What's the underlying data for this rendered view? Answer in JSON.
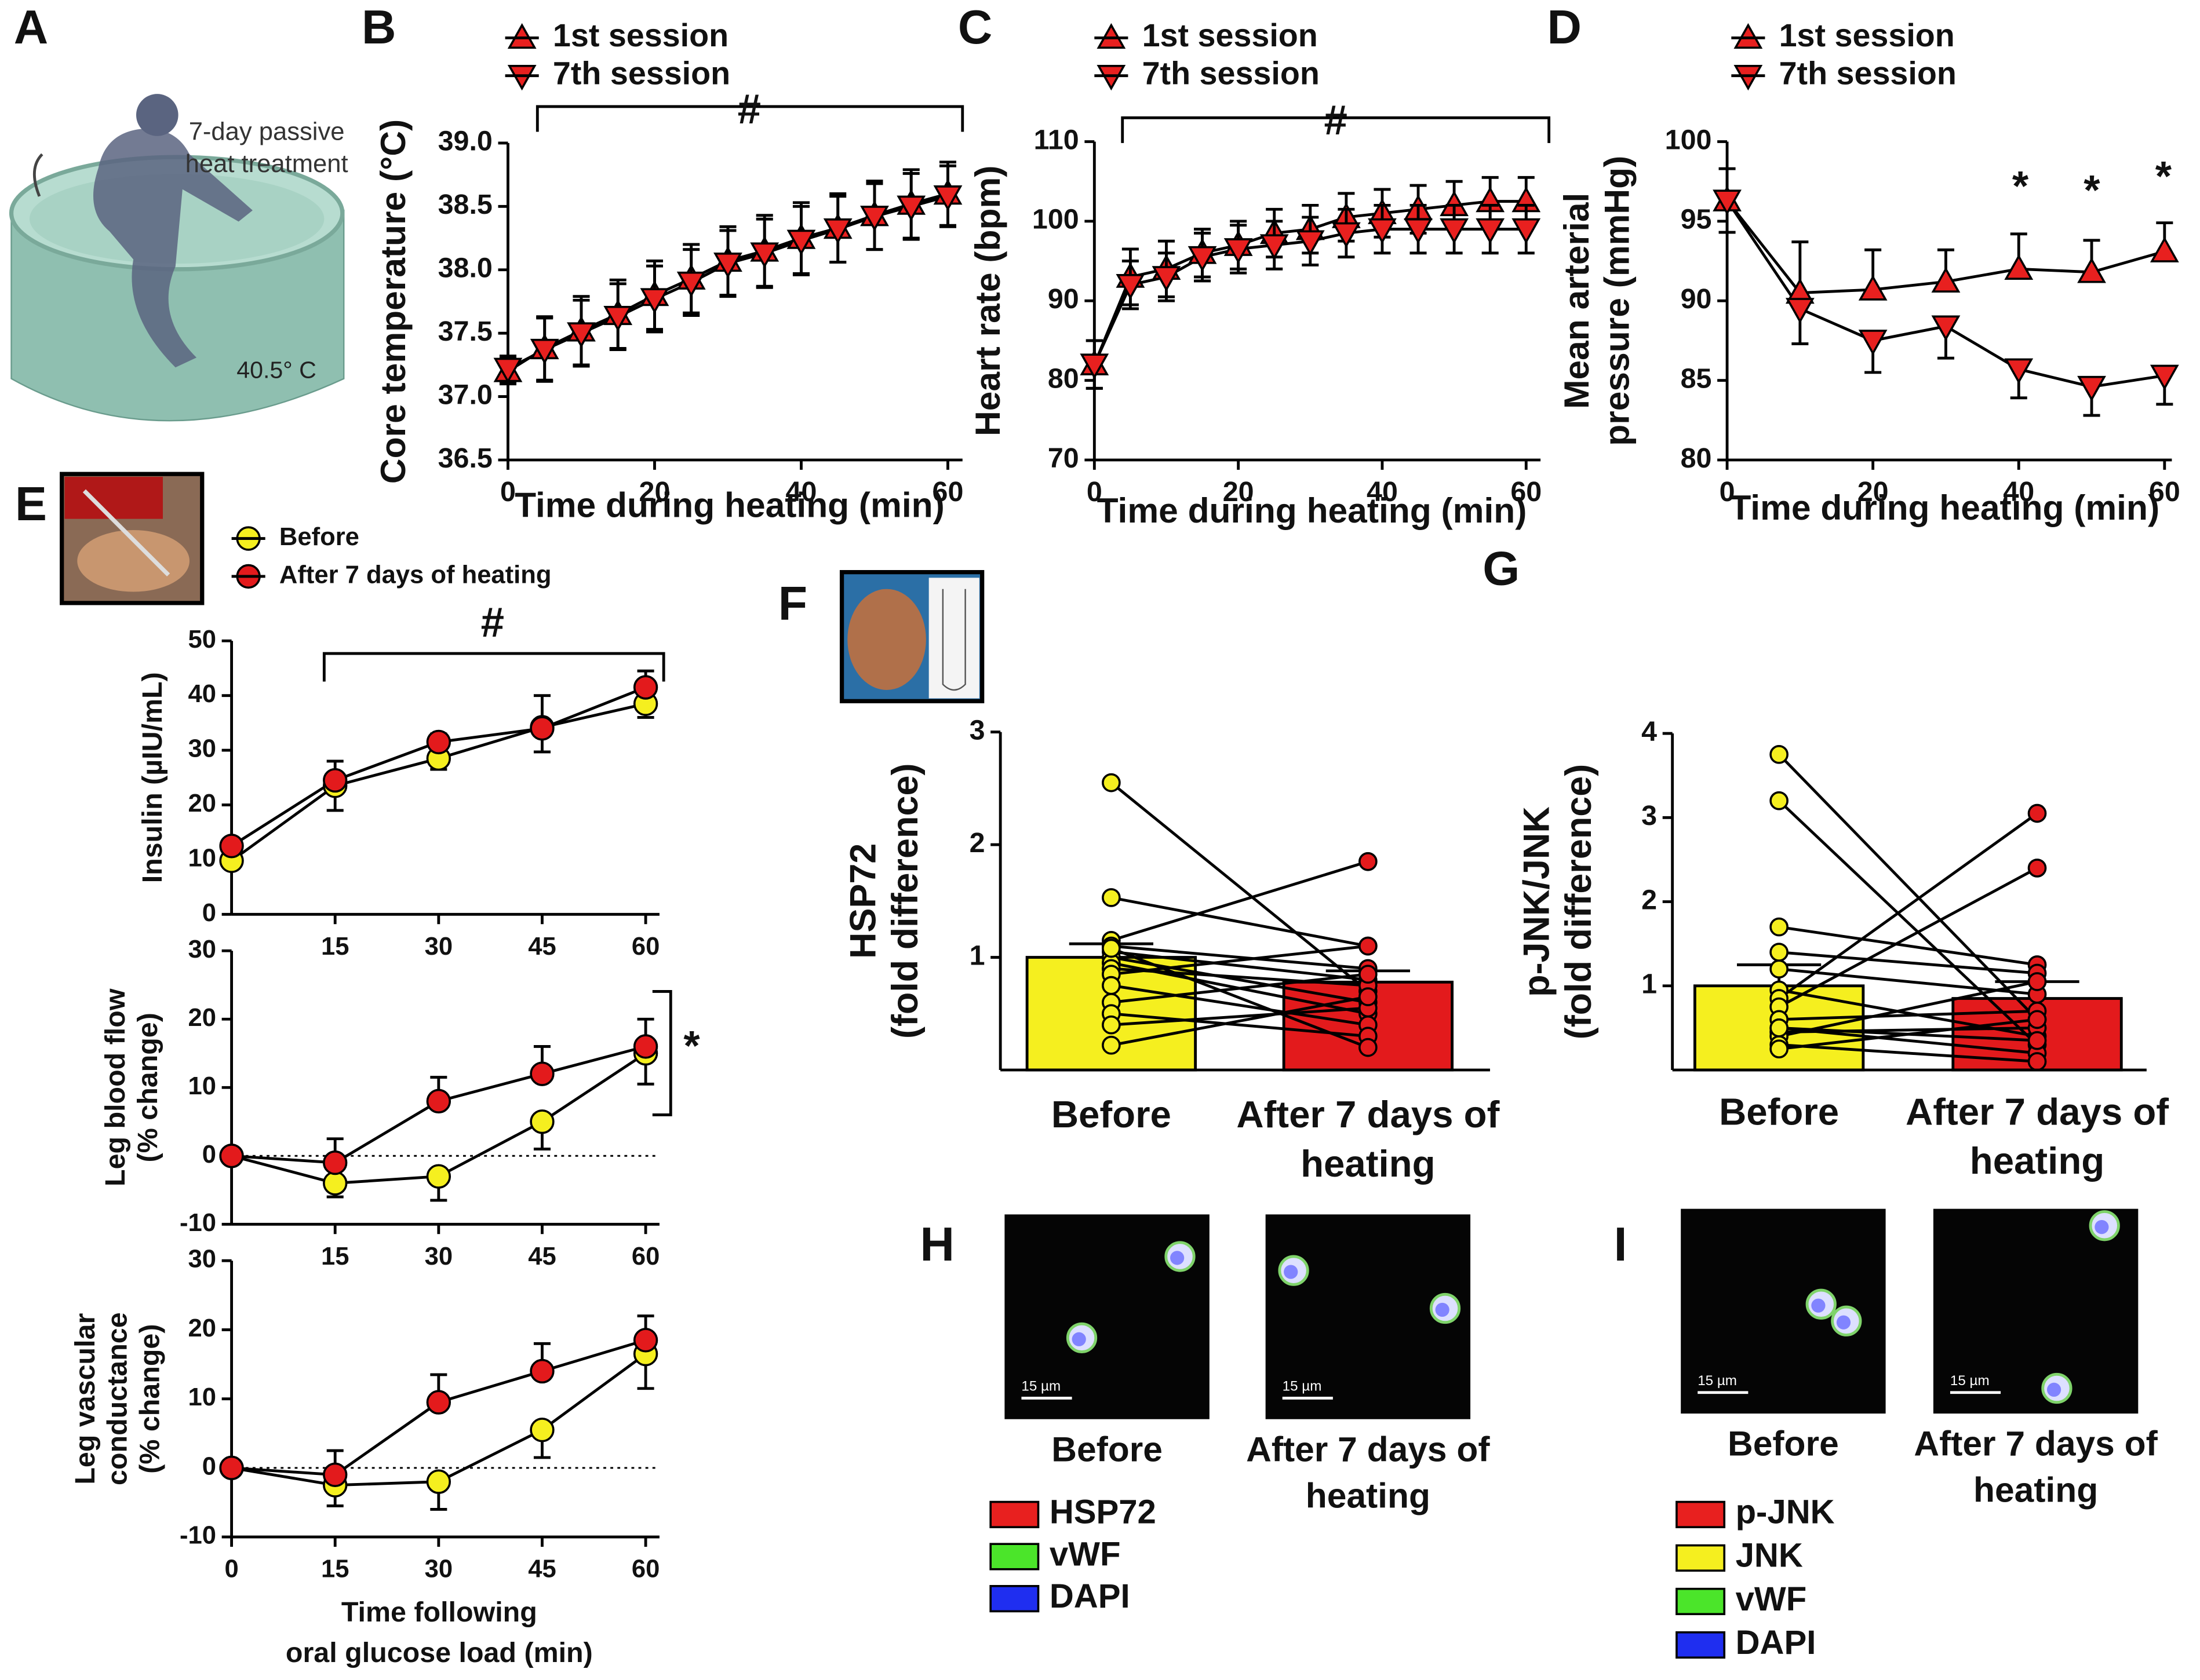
{
  "panels": {
    "labels": [
      "A",
      "B",
      "C",
      "D",
      "E",
      "F",
      "G",
      "H",
      "I"
    ]
  },
  "panel_a": {
    "caption": [
      "7-day passive",
      "heat treatment"
    ],
    "temperature": "40.5° C"
  },
  "chart_data": [
    {
      "type": "line",
      "ylabel": [
        "Core temperature (°C)"
      ],
      "xlabel": [
        "Time during heating (min)"
      ],
      "x": [
        0,
        5,
        10,
        15,
        20,
        25,
        30,
        35,
        40,
        45,
        50,
        55,
        60
      ],
      "xlim": [
        0,
        62
      ],
      "xticks": [
        0,
        20,
        40,
        60
      ],
      "ylim": [
        36.5,
        39.0
      ],
      "yticks": [
        36.5,
        {
          "value": 37,
          "label": "37.0"
        },
        37.5,
        {
          "value": 38,
          "label": "38.0"
        },
        38.5,
        {
          "value": 39,
          "label": "39.0"
        }
      ],
      "annotations": [
        "#"
      ],
      "series": [
        {
          "name": "1st session",
          "color": "#e8201f",
          "marker": "triangle-up",
          "error_dir": "both",
          "values": [
            37.2,
            37.38,
            37.52,
            37.65,
            37.8,
            37.93,
            38.07,
            38.15,
            38.25,
            38.33,
            38.43,
            38.52,
            38.6
          ],
          "errors": [
            0.1,
            0.25,
            0.27,
            0.27,
            0.27,
            0.27,
            0.27,
            0.28,
            0.28,
            0.27,
            0.27,
            0.27,
            0.25
          ]
        },
        {
          "name": "7th session",
          "color": "#e8201f",
          "marker": "triangle-down",
          "error_dir": "both",
          "values": [
            37.22,
            37.37,
            37.5,
            37.63,
            37.77,
            37.9,
            38.05,
            38.13,
            38.23,
            38.32,
            38.42,
            38.5,
            38.58
          ],
          "errors": [
            0.1,
            0.25,
            0.26,
            0.26,
            0.26,
            0.26,
            0.26,
            0.27,
            0.27,
            0.26,
            0.26,
            0.26,
            0.24
          ]
        }
      ]
    },
    {
      "type": "line",
      "ylabel": [
        "Heart rate (bpm)"
      ],
      "xlabel": [
        "Time during heating (min)"
      ],
      "x": [
        0,
        5,
        10,
        15,
        20,
        25,
        30,
        35,
        40,
        45,
        50,
        55,
        60
      ],
      "xlim": [
        0,
        62
      ],
      "xticks": [
        0,
        20,
        40,
        60
      ],
      "ylim": [
        70,
        110
      ],
      "yticks": [
        70,
        80,
        90,
        100,
        110
      ],
      "annotations": [
        "#"
      ],
      "series": [
        {
          "name": "1st session",
          "color": "#e8201f",
          "marker": "triangle-up",
          "error_dir": "both",
          "values": [
            82,
            93,
            94,
            96,
            97,
            98.5,
            99,
            100.5,
            101,
            101.5,
            102,
            102.5,
            102.5
          ],
          "errors": [
            3,
            3.5,
            3.5,
            3,
            3,
            3,
            3,
            3,
            3,
            3,
            3,
            3,
            3
          ]
        },
        {
          "name": "7th session",
          "color": "#e8201f",
          "marker": "triangle-down",
          "error_dir": "both",
          "values": [
            82,
            92,
            93,
            95.5,
            96.5,
            97,
            97.5,
            98.5,
            99,
            99,
            99,
            99,
            99
          ],
          "errors": [
            3,
            3,
            3,
            3,
            3,
            3,
            3,
            3,
            3,
            3,
            3,
            3,
            3
          ]
        }
      ]
    },
    {
      "type": "line",
      "ylabel": [
        "Mean arterial",
        "pressure (mmHg)"
      ],
      "xlabel": [
        "Time during heating (min)"
      ],
      "x": [
        0,
        10,
        20,
        30,
        40,
        50,
        60
      ],
      "xlim": [
        0,
        61
      ],
      "xticks": [
        0,
        20,
        40,
        60
      ],
      "ylim": [
        80,
        100
      ],
      "yticks": [
        80,
        85,
        90,
        95,
        100
      ],
      "annotations": [
        "*",
        "*",
        "*"
      ],
      "series": [
        {
          "name": "1st session",
          "color": "#e8201f",
          "marker": "triangle-up",
          "error_dir": "up",
          "values": [
            96.3,
            90.5,
            90.7,
            91.2,
            92,
            91.8,
            93.1
          ],
          "errors": [
            2,
            3.2,
            2.5,
            2,
            2.2,
            2,
            1.8
          ]
        },
        {
          "name": "7th session",
          "color": "#e8201f",
          "marker": "triangle-down",
          "error_dir": "down",
          "values": [
            96.3,
            89.5,
            87.5,
            88.4,
            85.7,
            84.6,
            85.3
          ],
          "errors": [
            2,
            2.2,
            2,
            2,
            1.8,
            1.8,
            1.8
          ]
        }
      ]
    },
    {
      "type": "line",
      "ylabel": [
        "Insulin (µIU/mL)"
      ],
      "x": [
        0,
        15,
        30,
        45,
        60
      ],
      "xlim": [
        0,
        62
      ],
      "xticks": [
        15,
        30,
        45,
        60
      ],
      "ylim": [
        0,
        50
      ],
      "yticks": [
        0,
        10,
        20,
        30,
        40,
        50
      ],
      "annotations": [
        "#"
      ],
      "series": [
        {
          "name": "Before",
          "color": "#f5ef1f",
          "marker": "circle",
          "error_dir": "down",
          "values": [
            9.8,
            23.5,
            28.5,
            34.2,
            38.5
          ],
          "errors": [
            1,
            4.5,
            2,
            4.5,
            2.5
          ]
        },
        {
          "name": "After 7 days of heating",
          "color": "#e31a1c",
          "marker": "circle",
          "error_dir": "up",
          "values": [
            12.5,
            24.5,
            31.5,
            34,
            41.5
          ],
          "errors": [
            1,
            3.5,
            1.5,
            6,
            3
          ]
        }
      ]
    },
    {
      "type": "line",
      "ylabel": [
        "Leg blood flow",
        "(% change)"
      ],
      "zero_line": true,
      "x": [
        0,
        15,
        30,
        45,
        60
      ],
      "xlim": [
        0,
        62
      ],
      "xticks": [
        15,
        30,
        45,
        60
      ],
      "ylim": [
        -10,
        30
      ],
      "yticks": [
        -10,
        0,
        10,
        20,
        30
      ],
      "annotations": [
        "*"
      ],
      "series": [
        {
          "color": "#f5ef1f",
          "marker": "circle",
          "error_dir": "down",
          "values": [
            0,
            -4,
            -3,
            5,
            15
          ],
          "errors": [
            0.5,
            2,
            3.5,
            4,
            4.5
          ]
        },
        {
          "color": "#e31a1c",
          "marker": "circle",
          "error_dir": "up",
          "values": [
            0,
            -1,
            8,
            12,
            16
          ],
          "errors": [
            0.5,
            3.5,
            3.5,
            4,
            4
          ]
        }
      ]
    },
    {
      "type": "line",
      "ylabel": [
        "Leg vascular",
        "conductance",
        "(% change)"
      ],
      "xlabel": [
        "Time following",
        "oral glucose load (min)"
      ],
      "zero_line": true,
      "x": [
        0,
        15,
        30,
        45,
        60
      ],
      "xlim": [
        0,
        62
      ],
      "xticks": [
        0,
        15,
        30,
        45,
        60
      ],
      "ylim": [
        -10,
        30
      ],
      "yticks": [
        -10,
        0,
        10,
        20,
        30
      ],
      "series": [
        {
          "color": "#f5ef1f",
          "marker": "circle",
          "error_dir": "down",
          "values": [
            0,
            -2.5,
            -2,
            5.5,
            16.5
          ],
          "errors": [
            0.5,
            3,
            4,
            4,
            5
          ]
        },
        {
          "color": "#e31a1c",
          "marker": "circle",
          "error_dir": "up",
          "values": [
            0,
            -1,
            9.5,
            14,
            18.5
          ],
          "errors": [
            0.5,
            3.5,
            4,
            4,
            3.5
          ]
        }
      ]
    },
    {
      "type": "bar",
      "ylabel": [
        "HSP72",
        "(fold difference)"
      ],
      "categories": [
        "Before",
        "After 7 days of heating"
      ],
      "colors": [
        "#f5ef1f",
        "#e31a1c"
      ],
      "values": [
        1.0,
        0.78
      ],
      "errors": [
        0.12,
        0.1
      ],
      "ylim": [
        0,
        3
      ],
      "yticks": [
        1,
        2,
        3
      ],
      "individual": [
        [
          2.55,
          1.53,
          1.15,
          1.1,
          1.05,
          1.0,
          0.95,
          0.9,
          0.85,
          0.75,
          0.6,
          0.5,
          0.4,
          0.22,
          1.08
        ],
        [
          0.7,
          1.1,
          1.85,
          0.9,
          0.8,
          0.6,
          0.5,
          0.75,
          1.1,
          0.4,
          0.85,
          0.3,
          0.55,
          0.65,
          0.2
        ]
      ]
    },
    {
      "type": "bar",
      "ylabel": [
        "p-JNK/JNK",
        "(fold difference)"
      ],
      "categories": [
        "Before",
        "After 7 days of heating"
      ],
      "colors": [
        "#f5ef1f",
        "#e31a1c"
      ],
      "values": [
        1.0,
        0.85
      ],
      "errors": [
        0.25,
        0.2
      ],
      "ylim": [
        0,
        4
      ],
      "yticks": [
        1,
        2,
        3,
        4
      ],
      "individual": [
        [
          3.75,
          3.2,
          1.7,
          1.4,
          1.2,
          0.95,
          0.85,
          0.75,
          0.6,
          0.5,
          0.45,
          0.4,
          0.3,
          0.25,
          0.5
        ],
        [
          0.6,
          0.3,
          1.25,
          1.15,
          0.9,
          0.4,
          3.05,
          2.4,
          0.7,
          0.2,
          0.5,
          1.05,
          0.1,
          0.6,
          0.35
        ]
      ]
    }
  ],
  "panel_h": {
    "images": [
      {
        "scale": "15 µm",
        "caption": "Before"
      },
      {
        "scale": "15 µm",
        "caption": "After 7 days of heating"
      }
    ],
    "legend": [
      {
        "name": "HSP72",
        "color": "#e8201f"
      },
      {
        "name": "vWF",
        "color": "#4be52a"
      },
      {
        "name": "DAPI",
        "color": "#1f2ef0"
      }
    ]
  },
  "panel_i": {
    "images": [
      {
        "scale": "15 µm",
        "caption": "Before"
      },
      {
        "scale": "15 µm",
        "caption": "After 7 days of heating"
      }
    ],
    "legend": [
      {
        "name": "p-JNK",
        "color": "#e8201f"
      },
      {
        "name": "JNK",
        "color": "#f5ef1f"
      },
      {
        "name": "vWF",
        "color": "#4be52a"
      },
      {
        "name": "DAPI",
        "color": "#1f2ef0"
      }
    ]
  }
}
